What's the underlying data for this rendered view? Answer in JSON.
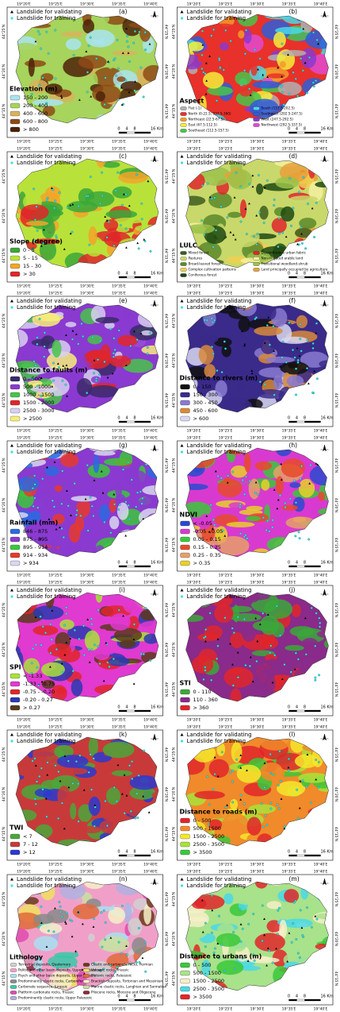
{
  "points_legend": [
    "Landslide for validating",
    "Landslide for training"
  ],
  "lon_labels": [
    "19°20'E",
    "19°25'E",
    "19°30'E",
    "19°35'E",
    "19°40'E"
  ],
  "lat_labels": [
    "44°25'N",
    "44°20'N",
    "44°15'N"
  ],
  "scale_labels": [
    "0",
    "4",
    "8",
    "16 Km"
  ],
  "panels": [
    {
      "letter": "(a)",
      "title": "Elevation (m)",
      "classes": [
        {
          "label": "150 - 200",
          "color": "#a9e4ee"
        },
        {
          "label": "200 - 400",
          "color": "#a6d45c"
        },
        {
          "label": "400 - 600",
          "color": "#d8b35c"
        },
        {
          "label": "600 - 800",
          "color": "#8e4a16"
        },
        {
          "label": "> 800",
          "color": "#4e2208"
        }
      ]
    },
    {
      "letter": "(b)",
      "title": "Aspect",
      "classes": [
        {
          "label": "Flat (-1)",
          "color": "#b0b0b0"
        },
        {
          "label": "North (0-22.5; 337.5-360)",
          "color": "#e8312a"
        },
        {
          "label": "Northeast (22.5-67.5)",
          "color": "#f39a2a"
        },
        {
          "label": "East (67.5-112.5)",
          "color": "#f4ee3a"
        },
        {
          "label": "Southeast (112.5-157.5)",
          "color": "#48c44a"
        },
        {
          "label": "South (157.5-202.5)",
          "color": "#4ad8e6"
        },
        {
          "label": "Southwest (202.5-247.5)",
          "color": "#2d5ed8"
        },
        {
          "label": "West (247.5-292.5)",
          "color": "#8a3ad0"
        },
        {
          "label": "Northwest (292.5-337.5)",
          "color": "#e04ad0"
        }
      ]
    },
    {
      "letter": "(c)",
      "title": "Slope (degree)",
      "classes": [
        {
          "label": "0 - 5",
          "color": "#3aa83a"
        },
        {
          "label": "5 - 15",
          "color": "#b8e23a"
        },
        {
          "label": "15 - 30",
          "color": "#f2a52a"
        },
        {
          "label": "> 30",
          "color": "#e0262a"
        }
      ]
    },
    {
      "letter": "(d)",
      "title": "LULC",
      "classes": [
        {
          "label": "Mixed forest",
          "color": "#3d5e1e"
        },
        {
          "label": "Pastures",
          "color": "#c9d86a"
        },
        {
          "label": "Broad-leaved forest",
          "color": "#5a8a2a"
        },
        {
          "label": "Complex cultivation patterns",
          "color": "#f0d050"
        },
        {
          "label": "Coniferous forest",
          "color": "#1e4a12"
        },
        {
          "label": "Discontinuous urban fabric",
          "color": "#e0262a"
        },
        {
          "label": "Non-irrigated arable land",
          "color": "#f5f0a0"
        },
        {
          "label": "Transitional woodland-shrub",
          "color": "#9ac24a"
        },
        {
          "label": "Land principally occupied by agriculture",
          "color": "#e8a03a"
        }
      ]
    },
    {
      "letter": "(e)",
      "title": "Distance to faults (m)",
      "classes": [
        {
          "label": "0 - 500",
          "color": "#3a2a6a"
        },
        {
          "label": "500 - 1000",
          "color": "#8a3ad0"
        },
        {
          "label": "1000 - 1500",
          "color": "#48c44a"
        },
        {
          "label": "1500 - 2000",
          "color": "#e0262a"
        },
        {
          "label": "2500 - 3000",
          "color": "#d8d0f0"
        },
        {
          "label": "> 2500",
          "color": "#f6ee7a"
        }
      ]
    },
    {
      "letter": "(f)",
      "title": "Distance to rivers (m)",
      "classes": [
        {
          "label": "0 - 150",
          "color": "#111111"
        },
        {
          "label": "150 - 300",
          "color": "#3a2a8a"
        },
        {
          "label": "300 - 450",
          "color": "#8a7ad0"
        },
        {
          "label": "450 - 600",
          "color": "#d88a3a"
        },
        {
          "label": "> 600",
          "color": "#d8d8f0"
        }
      ]
    },
    {
      "letter": "(g)",
      "title": "Rainfall (mm)",
      "classes": [
        {
          "label": "846 - 875",
          "color": "#2a6ae0"
        },
        {
          "label": "875 - 895",
          "color": "#8a3ad0"
        },
        {
          "label": "895 - 914",
          "color": "#3ac83a"
        },
        {
          "label": "914 - 934",
          "color": "#e63a2a"
        },
        {
          "label": "> 934",
          "color": "#d8d8f0"
        }
      ]
    },
    {
      "letter": "(h)",
      "title": "NDVI",
      "classes": [
        {
          "label": "< -0.05",
          "color": "#2a4ad0"
        },
        {
          "label": "-0.05 - 0.05",
          "color": "#d83ad0"
        },
        {
          "label": "0.05 - 0.15",
          "color": "#3ac83a"
        },
        {
          "label": "0.15 - 0.25",
          "color": "#e84a2a"
        },
        {
          "label": "0.25 - 0.35",
          "color": "#e6a06a"
        },
        {
          "label": "> 0.35",
          "color": "#e8d02a"
        }
      ]
    },
    {
      "letter": "(i)",
      "title": "SPI",
      "classes": [
        {
          "label": "< -1.33",
          "color": "#a8e23a"
        },
        {
          "label": "-1.33 - -0.75",
          "color": "#e03ad0"
        },
        {
          "label": "-0.75 - -0.20",
          "color": "#e0262a"
        },
        {
          "label": "-0.20 - 0.27",
          "color": "#2a3ab0"
        },
        {
          "label": "> 0.27",
          "color": "#5a3a1a"
        }
      ]
    },
    {
      "letter": "(j)",
      "title": "STI",
      "classes": [
        {
          "label": "0 - 110",
          "color": "#3aa83a"
        },
        {
          "label": "110 - 360",
          "color": "#8a2a8a"
        },
        {
          "label": "> 360",
          "color": "#e0262a"
        }
      ]
    },
    {
      "letter": "(k)",
      "title": "TWI",
      "classes": [
        {
          "label": "< 7",
          "color": "#4aa83a"
        },
        {
          "label": "7 - 12",
          "color": "#c83a3a"
        },
        {
          "label": "> 12",
          "color": "#2a3ad0"
        }
      ]
    },
    {
      "letter": "(l)",
      "title": "Distance to roads (m)",
      "classes": [
        {
          "label": "0 - 500",
          "color": "#e0262a"
        },
        {
          "label": "500 - 1500",
          "color": "#f08a2a"
        },
        {
          "label": "1500 - 2500",
          "color": "#f6e62a"
        },
        {
          "label": "2500 - 3500",
          "color": "#a8e23a"
        },
        {
          "label": "> 3500",
          "color": "#3ac83a"
        }
      ]
    },
    {
      "letter": "(n)",
      "title": "Lithology",
      "classes": [
        {
          "label": "Terrestrial deposits, Quaternary",
          "color": "#d0d0d0"
        },
        {
          "label": "Pelitic and other basin deposits, Upper Cretaceous",
          "color": "#f0a0c8"
        },
        {
          "label": "Psych and other basin deposits, Upper Jurassic",
          "color": "#a8e0f0"
        },
        {
          "label": "Predominantly clastic rocks, Carboniferous",
          "color": "#8a8a8a"
        },
        {
          "label": "Carbonate sequence, Jurassic",
          "color": "#3ac8a8"
        },
        {
          "label": "Platform carbonate rocks, Triassic",
          "color": "#e04ab0"
        },
        {
          "label": "Predominantly clastic rocks, Upper Paleozoic",
          "color": "#b0b0e0"
        },
        {
          "label": "Clastic and carbonate rocks, Permian",
          "color": "#6a3a1a"
        },
        {
          "label": "Volcanic rocks, Triassic",
          "color": "#f0e060"
        },
        {
          "label": "Plutonic rocks, Paleozoic",
          "color": "#e06a3a"
        },
        {
          "label": "Brackish deposits, Tortonian and Messinian",
          "color": "#f6f0c8"
        },
        {
          "label": "Marine clastic rocks, Langhian and Sarmatian",
          "color": "#c8e0a0"
        },
        {
          "label": "Pliocene rocks, Miocene and Oligocene",
          "color": "#8a2a3a"
        }
      ]
    },
    {
      "letter": "(m)",
      "title": "Distance to urbans (m)",
      "classes": [
        {
          "label": "0 - 500",
          "color": "#3ac83a"
        },
        {
          "label": "500 - 1500",
          "color": "#a8e28a"
        },
        {
          "label": "1500 - 2500",
          "color": "#f6eec8"
        },
        {
          "label": "2500 - 3500",
          "color": "#4ad8e6"
        },
        {
          "label": "> 3500",
          "color": "#e0262a"
        }
      ]
    }
  ]
}
